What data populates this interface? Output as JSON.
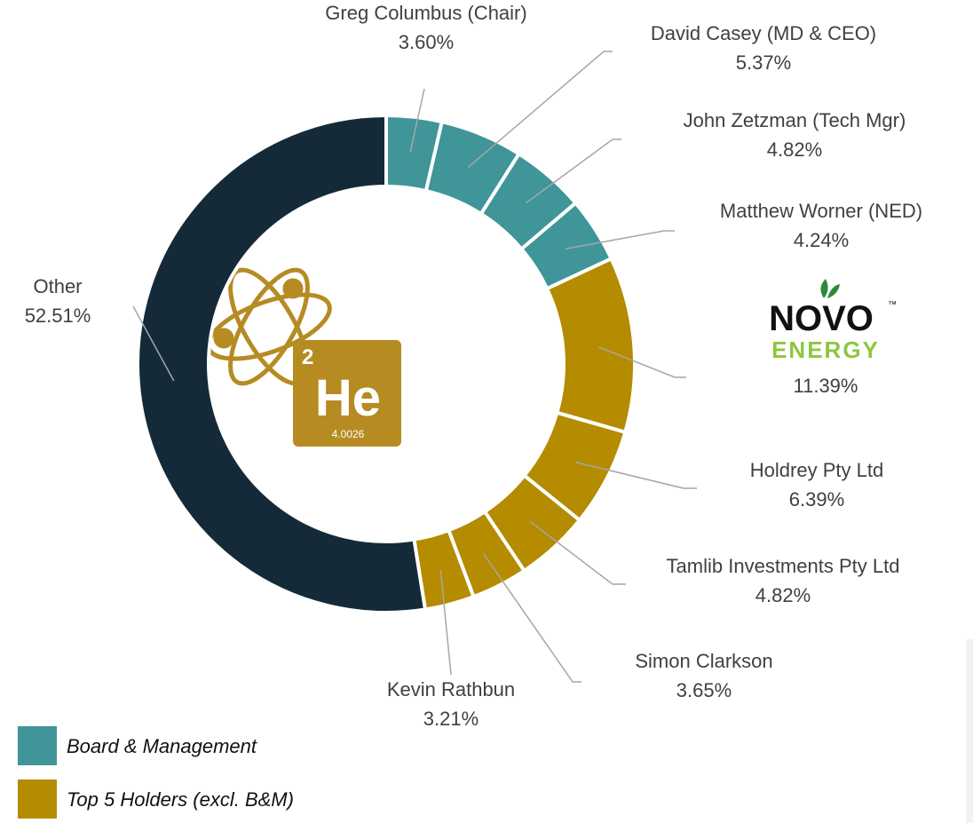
{
  "chart_data": {
    "type": "donut",
    "categories": [
      "Greg Columbus (Chair)",
      "David Casey (MD & CEO)",
      "John Zetzman (Tech Mgr)",
      "Matthew Worner (NED)",
      null,
      "Holdrey Pty Ltd",
      "Tamlib Investments Pty Ltd",
      "Simon Clarkson",
      "Kevin Rathbun",
      "Other"
    ],
    "values": [
      3.6,
      5.37,
      4.82,
      4.24,
      11.39,
      6.39,
      4.82,
      3.65,
      3.21,
      52.51
    ],
    "value_labels": [
      "3.60%",
      "5.37%",
      "4.82%",
      "4.24%",
      "11.39%",
      "6.39%",
      "4.82%",
      "3.65%",
      "3.21%",
      "52.51%"
    ],
    "colors": [
      "#3f9598",
      "#3f9598",
      "#3f9598",
      "#3f9598",
      "#b58b00",
      "#b58b00",
      "#b58b00",
      "#b58b00",
      "#b58b00",
      "#142a38"
    ],
    "legend": [
      {
        "name": "Board & Management",
        "color": "#3f9598"
      },
      {
        "name": "Top 5 Holders (excl. B&M)",
        "color": "#b58b00"
      }
    ],
    "logo": {
      "name": "NOVO",
      "sub": "ENERGY",
      "mark": "™"
    },
    "center_tile": {
      "number": "2",
      "symbol": "He",
      "mass": "4.0026"
    }
  }
}
